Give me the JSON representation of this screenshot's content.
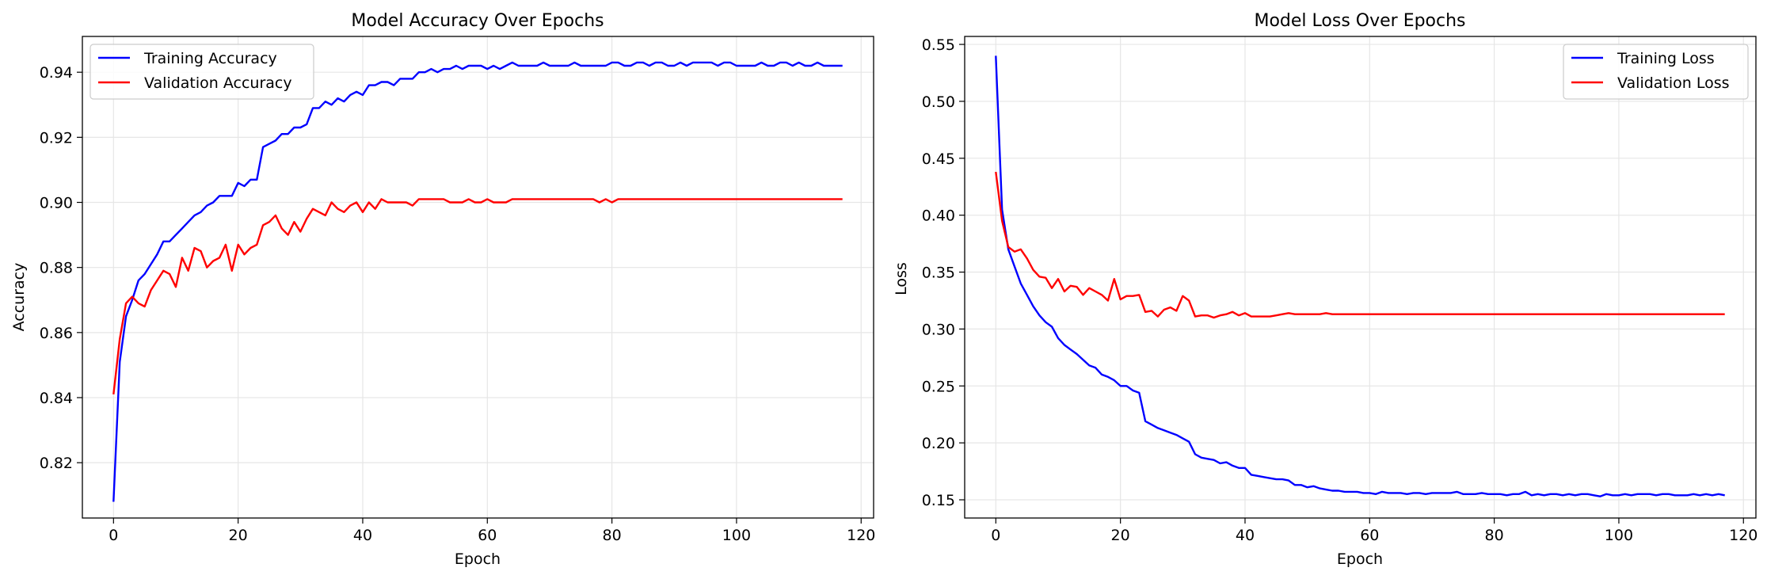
{
  "chart_data": [
    {
      "type": "line",
      "title": "Model Accuracy Over Epochs",
      "xlabel": "Epoch",
      "ylabel": "Accuracy",
      "xlim": [
        -5,
        122
      ],
      "ylim": [
        0.803,
        0.951
      ],
      "xticks": [
        0,
        20,
        40,
        60,
        80,
        100,
        120
      ],
      "yticks": [
        0.82,
        0.84,
        0.86,
        0.88,
        0.9,
        0.92,
        0.94
      ],
      "ytick_labels": [
        "0.82",
        "0.84",
        "0.86",
        "0.88",
        "0.90",
        "0.92",
        "0.94"
      ],
      "grid": true,
      "legend_position": "upper-left",
      "series": [
        {
          "name": "Training Accuracy",
          "color": "#0000ff",
          "values": [
            0.808,
            0.851,
            0.865,
            0.87,
            0.876,
            0.878,
            0.881,
            0.884,
            0.888,
            0.888,
            0.89,
            0.892,
            0.894,
            0.896,
            0.897,
            0.899,
            0.9,
            0.902,
            0.902,
            0.902,
            0.906,
            0.905,
            0.907,
            0.907,
            0.917,
            0.918,
            0.919,
            0.921,
            0.921,
            0.923,
            0.923,
            0.924,
            0.929,
            0.929,
            0.931,
            0.93,
            0.932,
            0.931,
            0.933,
            0.934,
            0.933,
            0.936,
            0.936,
            0.937,
            0.937,
            0.936,
            0.938,
            0.938,
            0.938,
            0.94,
            0.94,
            0.941,
            0.94,
            0.941,
            0.941,
            0.942,
            0.941,
            0.942,
            0.942,
            0.942,
            0.941,
            0.942,
            0.941,
            0.942,
            0.943,
            0.942,
            0.942,
            0.942,
            0.942,
            0.943,
            0.942,
            0.942,
            0.942,
            0.942,
            0.943,
            0.942,
            0.942,
            0.942,
            0.942,
            0.942,
            0.943,
            0.943,
            0.942,
            0.942,
            0.943,
            0.943,
            0.942,
            0.943,
            0.943,
            0.942,
            0.942,
            0.943,
            0.942,
            0.943,
            0.943,
            0.943,
            0.943,
            0.942,
            0.943,
            0.943,
            0.942,
            0.942,
            0.942,
            0.942,
            0.943,
            0.942,
            0.942,
            0.943,
            0.943,
            0.942,
            0.943,
            0.942,
            0.942,
            0.943,
            0.942,
            0.942,
            0.942,
            0.942
          ]
        },
        {
          "name": "Validation Accuracy",
          "color": "#ff0000",
          "values": [
            0.841,
            0.858,
            0.869,
            0.871,
            0.869,
            0.868,
            0.873,
            0.876,
            0.879,
            0.878,
            0.874,
            0.883,
            0.879,
            0.886,
            0.885,
            0.88,
            0.882,
            0.883,
            0.887,
            0.879,
            0.887,
            0.884,
            0.886,
            0.887,
            0.893,
            0.894,
            0.896,
            0.892,
            0.89,
            0.894,
            0.891,
            0.895,
            0.898,
            0.897,
            0.896,
            0.9,
            0.898,
            0.897,
            0.899,
            0.9,
            0.897,
            0.9,
            0.898,
            0.901,
            0.9,
            0.9,
            0.9,
            0.9,
            0.899,
            0.901,
            0.901,
            0.901,
            0.901,
            0.901,
            0.9,
            0.9,
            0.9,
            0.901,
            0.9,
            0.9,
            0.901,
            0.9,
            0.9,
            0.9,
            0.901,
            0.901,
            0.901,
            0.901,
            0.901,
            0.901,
            0.901,
            0.901,
            0.901,
            0.901,
            0.901,
            0.901,
            0.901,
            0.901,
            0.9,
            0.901,
            0.9,
            0.901,
            0.901,
            0.901,
            0.901,
            0.901,
            0.901,
            0.901,
            0.901,
            0.901,
            0.901,
            0.901,
            0.901,
            0.901,
            0.901,
            0.901,
            0.901,
            0.901,
            0.901,
            0.901,
            0.901,
            0.901,
            0.901,
            0.901,
            0.901,
            0.901,
            0.901,
            0.901,
            0.901,
            0.901,
            0.901,
            0.901,
            0.901,
            0.901,
            0.901,
            0.901,
            0.901,
            0.901
          ]
        }
      ]
    },
    {
      "type": "line",
      "title": "Model Loss Over Epochs",
      "xlabel": "Epoch",
      "ylabel": "Loss",
      "xlim": [
        -5,
        122
      ],
      "ylim": [
        0.134,
        0.557
      ],
      "xticks": [
        0,
        20,
        40,
        60,
        80,
        100,
        120
      ],
      "yticks": [
        0.15,
        0.2,
        0.25,
        0.3,
        0.35,
        0.4,
        0.45,
        0.5,
        0.55
      ],
      "ytick_labels": [
        "0.15",
        "0.20",
        "0.25",
        "0.30",
        "0.35",
        "0.40",
        "0.45",
        "0.50",
        "0.55"
      ],
      "grid": true,
      "legend_position": "upper-right",
      "series": [
        {
          "name": "Training Loss",
          "color": "#0000ff",
          "values": [
            0.54,
            0.405,
            0.37,
            0.355,
            0.34,
            0.33,
            0.32,
            0.312,
            0.306,
            0.302,
            0.292,
            0.286,
            0.282,
            0.278,
            0.273,
            0.268,
            0.266,
            0.26,
            0.258,
            0.255,
            0.25,
            0.25,
            0.246,
            0.244,
            0.219,
            0.216,
            0.213,
            0.211,
            0.209,
            0.207,
            0.204,
            0.201,
            0.19,
            0.187,
            0.186,
            0.185,
            0.182,
            0.183,
            0.18,
            0.178,
            0.178,
            0.172,
            0.171,
            0.17,
            0.169,
            0.168,
            0.168,
            0.167,
            0.163,
            0.163,
            0.161,
            0.162,
            0.16,
            0.159,
            0.158,
            0.158,
            0.157,
            0.157,
            0.157,
            0.156,
            0.156,
            0.155,
            0.157,
            0.156,
            0.156,
            0.156,
            0.155,
            0.156,
            0.156,
            0.155,
            0.156,
            0.156,
            0.156,
            0.156,
            0.157,
            0.155,
            0.155,
            0.155,
            0.156,
            0.155,
            0.155,
            0.155,
            0.154,
            0.155,
            0.155,
            0.157,
            0.154,
            0.155,
            0.154,
            0.155,
            0.155,
            0.154,
            0.155,
            0.154,
            0.155,
            0.155,
            0.154,
            0.153,
            0.155,
            0.154,
            0.154,
            0.155,
            0.154,
            0.155,
            0.155,
            0.155,
            0.154,
            0.155,
            0.155,
            0.154,
            0.154,
            0.154,
            0.155,
            0.154,
            0.155,
            0.154,
            0.155,
            0.154
          ]
        },
        {
          "name": "Validation Loss",
          "color": "#ff0000",
          "values": [
            0.438,
            0.395,
            0.372,
            0.368,
            0.37,
            0.362,
            0.352,
            0.346,
            0.345,
            0.336,
            0.344,
            0.333,
            0.338,
            0.337,
            0.33,
            0.336,
            0.333,
            0.33,
            0.325,
            0.344,
            0.326,
            0.329,
            0.329,
            0.33,
            0.315,
            0.316,
            0.311,
            0.317,
            0.319,
            0.316,
            0.329,
            0.325,
            0.311,
            0.312,
            0.312,
            0.31,
            0.312,
            0.313,
            0.315,
            0.312,
            0.314,
            0.311,
            0.311,
            0.311,
            0.311,
            0.312,
            0.313,
            0.314,
            0.313,
            0.313,
            0.313,
            0.313,
            0.313,
            0.314,
            0.313,
            0.313,
            0.313,
            0.313,
            0.313,
            0.313,
            0.313,
            0.313,
            0.313,
            0.313,
            0.313,
            0.313,
            0.313,
            0.313,
            0.313,
            0.313,
            0.313,
            0.313,
            0.313,
            0.313,
            0.313,
            0.313,
            0.313,
            0.313,
            0.313,
            0.313,
            0.313,
            0.313,
            0.313,
            0.313,
            0.313,
            0.313,
            0.313,
            0.313,
            0.313,
            0.313,
            0.313,
            0.313,
            0.313,
            0.313,
            0.313,
            0.313,
            0.313,
            0.313,
            0.313,
            0.313,
            0.313,
            0.313,
            0.313,
            0.313,
            0.313,
            0.313,
            0.313,
            0.313,
            0.313,
            0.313,
            0.313,
            0.313,
            0.313,
            0.313,
            0.313,
            0.313,
            0.313,
            0.313
          ]
        }
      ]
    }
  ]
}
